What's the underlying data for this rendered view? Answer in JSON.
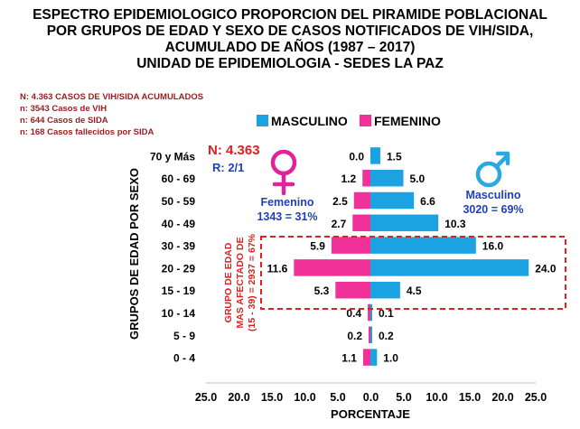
{
  "title_lines": [
    "ESPECTRO EPIDEMIOLOGICO PROPORCION DEL PIRAMIDE POBLACIONAL",
    "POR GRUPOS DE EDAD Y SEXO DE CASOS NOTIFICADOS DE VIH/SIDA,",
    "ACUMULADO DE AÑOS (1987 – 2017)",
    "UNIDAD DE EPIDEMIOLOGIA - SEDES LA PAZ"
  ],
  "notes": [
    "N: 4.363 CASOS DE VIH/SIDA ACUMULADOS",
    "n: 3543 Casos de VIH",
    "n: 644 Casos de SIDA",
    "n: 168 Casos fallecidos por SIDA"
  ],
  "annotations": {
    "n_total": "N: 4.363",
    "ratio": "R: 2/1",
    "female_label": "Femenino",
    "female_value": "1343 = 31%",
    "male_label": "Masculino",
    "male_value": "3020 = 69%",
    "group_lines": [
      "GRUPO DE EDAD",
      "MAS AFECTADO DE",
      "(15 - 39) = 2937 = 67%"
    ]
  },
  "colors": {
    "masculino": "#1aa3e0",
    "femenino": "#f0319a",
    "highlight_box": "#e02020",
    "female_symbol": "#e0239a",
    "male_symbol": "#2aa8e0",
    "annotation_red": "#e02020",
    "annotation_blue": "#1f3fbf"
  },
  "chart_data": {
    "type": "bar",
    "orientation": "horizontal-pyramid",
    "categories": [
      "70 y Más",
      "60 - 69",
      "50 - 59",
      "40 - 49",
      "30 - 39",
      "20 - 29",
      "15 - 19",
      "10 - 14",
      "5 - 9",
      "0 - 4"
    ],
    "series": [
      {
        "name": "MASCULINO",
        "side": "right",
        "values": [
          1.5,
          5.0,
          6.6,
          10.3,
          16.0,
          24.0,
          4.5,
          0.1,
          0.2,
          1.0
        ],
        "labels": [
          "1.5",
          "5.0",
          "6.6",
          "10.3",
          "16.0",
          "24.0",
          "4.5",
          "0.1",
          "0.2",
          "1.0"
        ]
      },
      {
        "name": "FEMENINO",
        "side": "left",
        "values": [
          0.0,
          1.2,
          2.5,
          2.7,
          5.9,
          11.6,
          5.3,
          0.4,
          0.2,
          1.1
        ],
        "labels": [
          "0.0",
          "1.2",
          "2.5",
          "2.7",
          "5.9",
          "11.6",
          "5.3",
          "0.4",
          "0.2",
          "1.1"
        ]
      }
    ],
    "xlabel": "PORCENTAJE",
    "ylabel": "GRUPOS DE EDAD POR SEXO",
    "xlim": [
      -25,
      25
    ],
    "xticks": [
      "25.0",
      "20.0",
      "15.0",
      "10.0",
      "5.0",
      "0.0",
      "5.0",
      "10.0",
      "15.0",
      "20.0",
      "25.0"
    ],
    "legend_position": "top",
    "grid": false,
    "highlight_categories": [
      "30 - 39",
      "20 - 29",
      "15 - 19"
    ]
  }
}
